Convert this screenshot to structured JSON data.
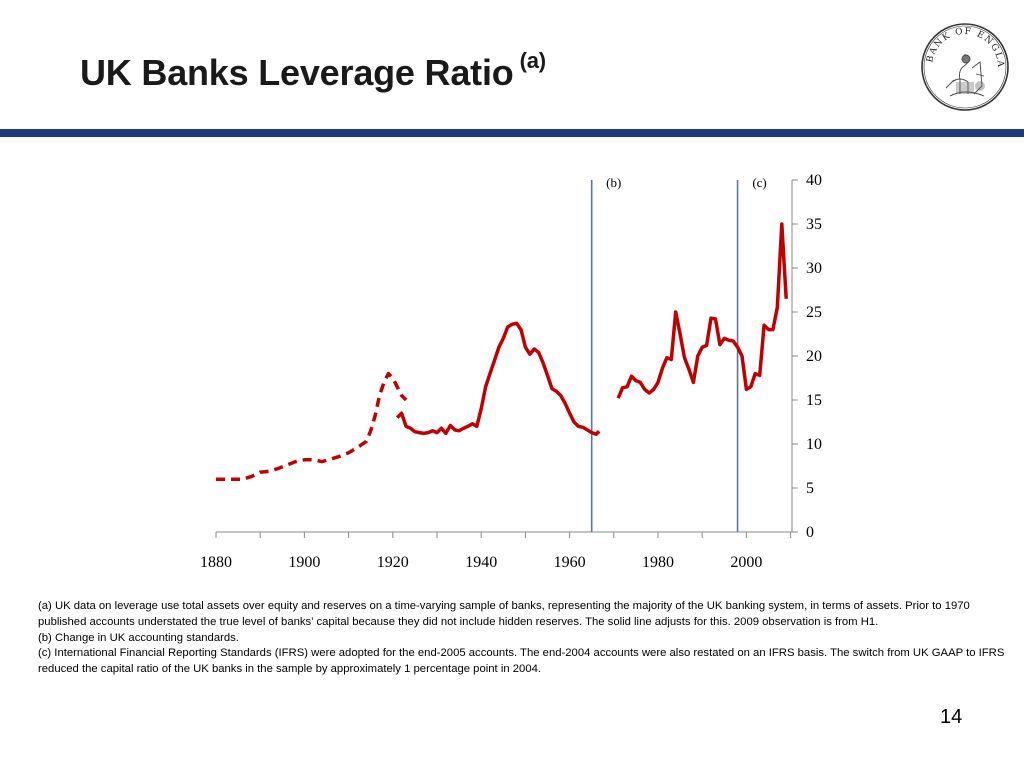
{
  "slide": {
    "title": "UK Banks Leverage Ratio",
    "title_marker": "(a)",
    "page_number": "14",
    "accent_color": "#1f3c7e"
  },
  "logo": {
    "text": "BANK OF ENGLAND"
  },
  "chart_data": {
    "type": "line",
    "title": "UK Banks Leverage Ratio",
    "xlabel": "",
    "ylabel": "",
    "xlim": [
      1880,
      2010
    ],
    "ylim": [
      0,
      40
    ],
    "x_ticks": [
      1880,
      1900,
      1920,
      1940,
      1960,
      1980,
      2000
    ],
    "y_ticks": [
      0,
      5,
      10,
      15,
      20,
      25,
      30,
      35,
      40
    ],
    "y_axis_side": "right",
    "grid": false,
    "line_color": "#c00000",
    "reference_line_color": "#4a7ab0",
    "reference_lines": [
      {
        "x": 1965,
        "label": "(b)"
      },
      {
        "x": 1998,
        "label": "(c)"
      }
    ],
    "series": [
      {
        "style": "dashed",
        "x": [
          1880,
          1882,
          1884,
          1886,
          1888,
          1890,
          1892,
          1894,
          1896,
          1898,
          1900,
          1902,
          1904,
          1906,
          1908,
          1910,
          1912,
          1914,
          1915,
          1916,
          1917,
          1918,
          1919,
          1920,
          1921,
          1922,
          1923
        ],
        "y": [
          6.0,
          6.0,
          6.0,
          6.0,
          6.3,
          6.8,
          6.9,
          7.2,
          7.6,
          8.0,
          8.2,
          8.2,
          8.0,
          8.3,
          8.6,
          9.0,
          9.6,
          10.3,
          11.5,
          13.2,
          15.5,
          17.0,
          18.0,
          17.5,
          16.5,
          15.5,
          15.0
        ]
      },
      {
        "style": "solid",
        "x": [
          1921,
          1922,
          1923,
          1924,
          1925,
          1926,
          1927,
          1928,
          1929,
          1930,
          1931,
          1932,
          1933,
          1934,
          1935,
          1936,
          1937,
          1938,
          1939,
          1940,
          1941,
          1942,
          1943,
          1944,
          1945,
          1946,
          1947,
          1948,
          1949,
          1950,
          1951,
          1952,
          1953,
          1954,
          1955,
          1956,
          1957,
          1958,
          1959,
          1960,
          1961,
          1962,
          1963,
          1964,
          1965
        ],
        "y": [
          13.0,
          13.5,
          12.0,
          11.8,
          11.4,
          11.3,
          11.2,
          11.3,
          11.5,
          11.3,
          11.8,
          11.2,
          12.1,
          11.6,
          11.5,
          11.8,
          12.0,
          12.3,
          12.0,
          14.0,
          16.5,
          18.0,
          19.5,
          21.0,
          22.0,
          23.3,
          23.6,
          23.7,
          23.0,
          21.0,
          20.2,
          20.8,
          20.4,
          19.2,
          17.8,
          16.3,
          16.0,
          15.5,
          14.6,
          13.5,
          12.5,
          12.0,
          11.9,
          11.6,
          11.3
        ]
      },
      {
        "style": "dashed",
        "x": [
          1965,
          1966,
          1967
        ],
        "y": [
          11.3,
          11.1,
          11.6
        ]
      },
      {
        "style": "solid",
        "x": [
          1971,
          1972,
          1973,
          1974,
          1975,
          1976,
          1977,
          1978,
          1979,
          1980,
          1981,
          1982,
          1983,
          1984,
          1985,
          1986,
          1987,
          1988,
          1989,
          1990,
          1991,
          1992,
          1993,
          1994,
          1995,
          1996,
          1997,
          1998,
          1999,
          2000,
          2001,
          2002,
          2003,
          2004,
          2005,
          2006,
          2007,
          2008,
          2009
        ],
        "y": [
          15.2,
          16.4,
          16.5,
          17.7,
          17.2,
          17.0,
          16.2,
          15.8,
          16.2,
          17.0,
          18.6,
          19.8,
          19.6,
          25.0,
          22.5,
          19.8,
          18.5,
          17.0,
          20.0,
          21.0,
          21.2,
          24.3,
          24.2,
          21.3,
          22.0,
          21.8,
          21.7,
          21.0,
          20.0,
          16.2,
          16.5,
          18.0,
          17.8,
          23.5,
          23.0,
          23.0,
          25.5,
          35.0,
          26.5
        ]
      }
    ]
  },
  "footnotes": [
    "(a)  UK data on leverage use total assets over equity and reserves on a time-varying sample of banks, representing the majority of the UK banking system, in terms of assets.  Prior to 1970 published accounts understated the true level of banks' capital because they did not include hidden reserves.  The solid line adjusts for this.  2009 observation is from H1.",
    "(b)  Change in UK accounting standards.",
    "(c)  International Financial Reporting Standards (IFRS) were adopted for the end-2005 accounts.  The end-2004 accounts were also restated on an IFRS basis.  The switch from UK GAAP to IFRS reduced the capital ratio of the UK banks in the sample by approximately 1 percentage point in 2004."
  ]
}
